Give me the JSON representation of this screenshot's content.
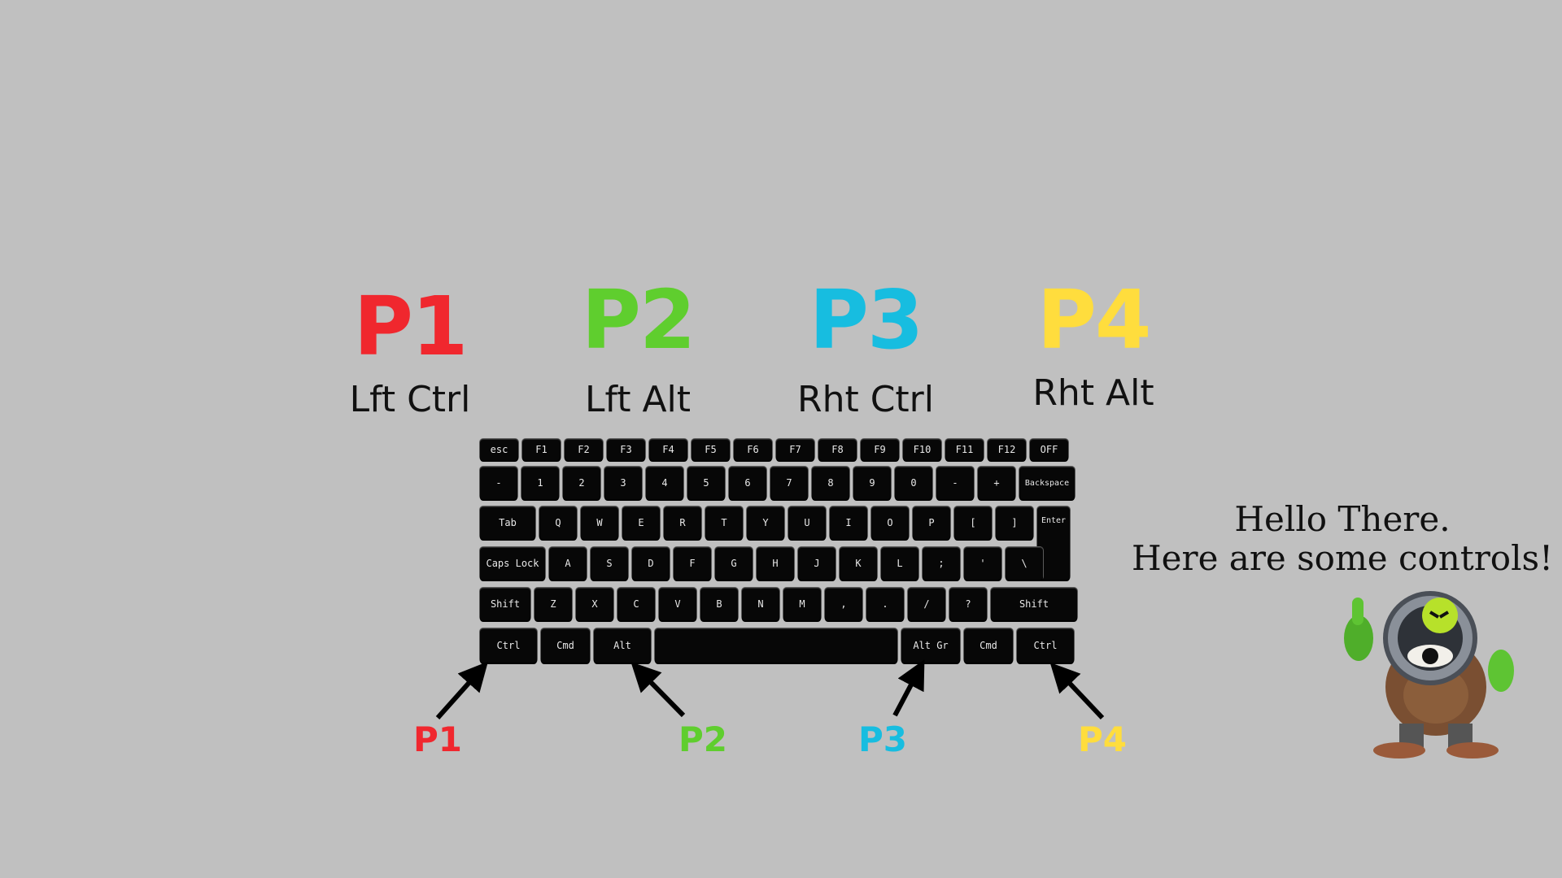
{
  "players": [
    {
      "id": "P1",
      "control": "Lft Ctrl",
      "color": "#f0272e"
    },
    {
      "id": "P2",
      "control": "Lft Alt",
      "color": "#5fce2e"
    },
    {
      "id": "P3",
      "control": "Rht Ctrl",
      "color": "#17bde0"
    },
    {
      "id": "P4",
      "control": "Rht Alt",
      "color": "#ffdd3d"
    }
  ],
  "keyboard": {
    "row0": [
      "esc",
      "F1",
      "F2",
      "F3",
      "F4",
      "F5",
      "F6",
      "F7",
      "F8",
      "F9",
      "F10",
      "F11",
      "F12",
      "OFF"
    ],
    "row1": [
      "-",
      "1",
      "2",
      "3",
      "4",
      "5",
      "6",
      "7",
      "8",
      "9",
      "0",
      "-",
      "+",
      "Backspace"
    ],
    "row2": [
      "Tab",
      "Q",
      "W",
      "E",
      "R",
      "T",
      "Y",
      "U",
      "I",
      "O",
      "P",
      "[",
      "]",
      "Enter"
    ],
    "row3": [
      "Caps Lock",
      "A",
      "S",
      "D",
      "F",
      "G",
      "H",
      "J",
      "K",
      "L",
      ";",
      "'",
      "\\"
    ],
    "row4": [
      "Shift",
      "Z",
      "X",
      "C",
      "V",
      "B",
      "N",
      "M",
      ",",
      ".",
      "/",
      "?",
      "Shift"
    ],
    "row5": [
      "Ctrl",
      "Cmd",
      "Alt",
      "",
      "Alt Gr",
      "Cmd",
      "Ctrl"
    ]
  },
  "arrow_labels": [
    "P1",
    "P2",
    "P3",
    "P4"
  ],
  "greeting": {
    "line1": "Hello There.",
    "line2": "Here are some controls!"
  },
  "mascot_icon": "robot-mascot-icon"
}
